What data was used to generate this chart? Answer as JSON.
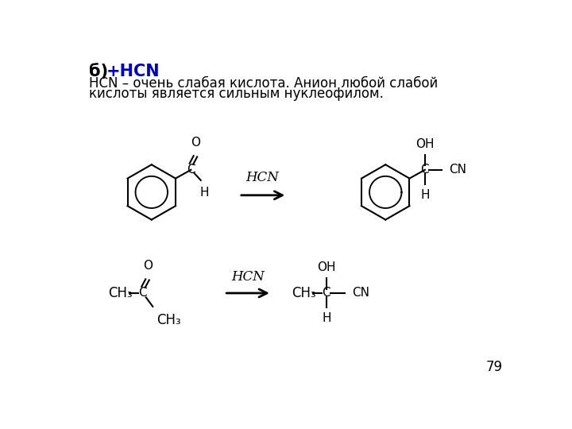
{
  "title_prefix": "б) ",
  "title_bold": "+HCN",
  "title_bold_color": "#0000cc",
  "description_line1": "HCN – очень слабая кислота. Анион любой слабой",
  "description_line2": "кислоты является сильным нуклеофилом.",
  "page_number": "79",
  "background": "#ffffff",
  "line_color": "#000000",
  "text_color": "#000000"
}
